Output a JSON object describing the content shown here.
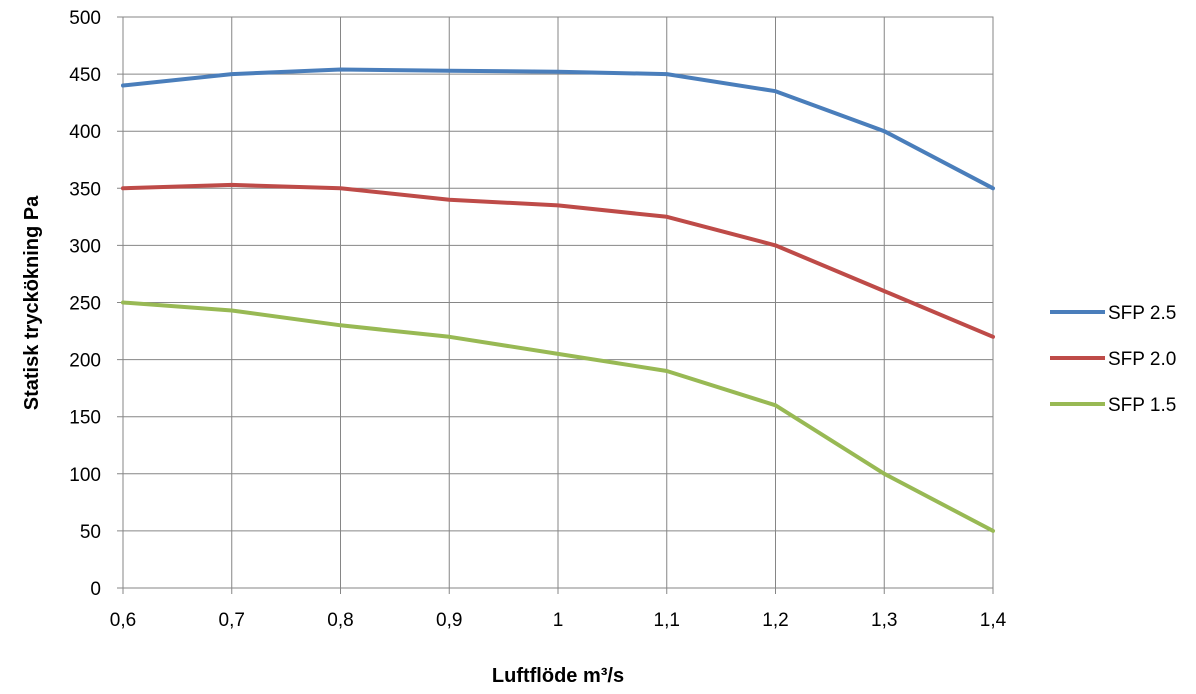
{
  "chart_data": {
    "type": "line",
    "x": [
      0.6,
      0.7,
      0.8,
      0.9,
      1.0,
      1.1,
      1.2,
      1.3,
      1.4
    ],
    "x_tick_labels": [
      "0,6",
      "0,7",
      "0,8",
      "0,9",
      "1",
      "1,1",
      "1,2",
      "1,3",
      "1,4"
    ],
    "y_ticks": [
      0,
      50,
      100,
      150,
      200,
      250,
      300,
      350,
      400,
      450,
      500
    ],
    "y_tick_labels": [
      "0",
      "50",
      "100",
      "150",
      "200",
      "250",
      "300",
      "350",
      "400",
      "450",
      "500"
    ],
    "xlim": [
      0.6,
      1.4
    ],
    "ylim": [
      0,
      500
    ],
    "xlabel": "Luftflöde m³/s",
    "ylabel": "Statisk tryckökning Pa",
    "grid": true,
    "legend_position": "right",
    "series": [
      {
        "name": "SFP 2.5",
        "color": "#4a7ebb",
        "values": [
          440,
          450,
          454,
          453,
          452,
          450,
          435,
          400,
          350
        ]
      },
      {
        "name": "SFP 2.0",
        "color": "#be4b48",
        "values": [
          350,
          353,
          350,
          340,
          335,
          325,
          300,
          260,
          220
        ]
      },
      {
        "name": "SFP 1.5",
        "color": "#98b954",
        "values": [
          250,
          243,
          230,
          220,
          205,
          190,
          160,
          100,
          50
        ]
      }
    ]
  }
}
